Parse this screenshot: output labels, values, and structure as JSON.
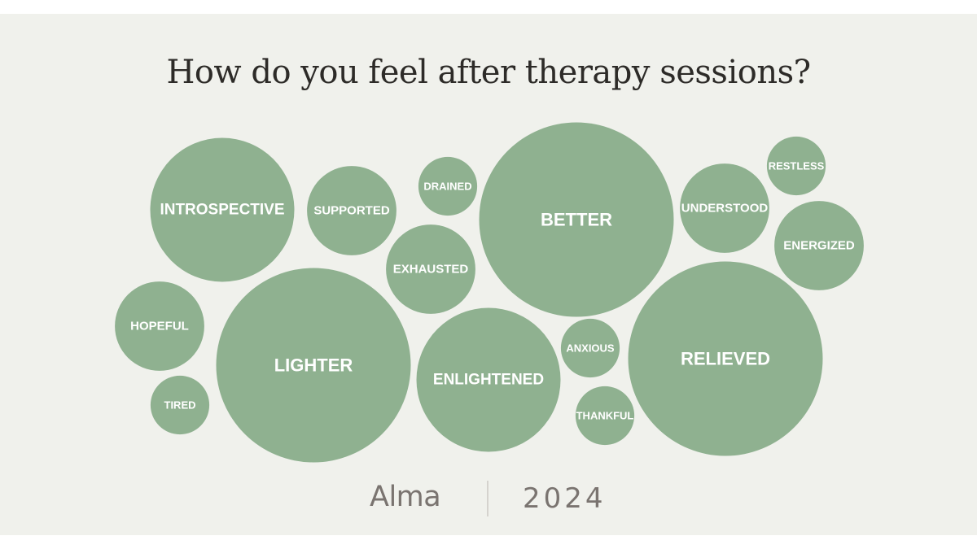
{
  "title": "How do you feel after therapy sessions?",
  "footer": {
    "brand": "Alma",
    "year": "2024"
  },
  "colors": {
    "background": "#f0f1ec",
    "bubble": "#8fb190",
    "bubble_text": "#ffffff",
    "title": "#2d2b28",
    "footer_text": "#7a7470"
  },
  "chart_data": {
    "type": "bubble",
    "title": "How do you feel after therapy sessions?",
    "labels": [
      "INTROSPECTIVE",
      "SUPPORTED",
      "DRAINED",
      "BETTER",
      "UNDERSTOOD",
      "RESTLESS",
      "ENERGIZED",
      "EXHAUSTED",
      "HOPEFUL",
      "LIGHTER",
      "ENLIGHTENED",
      "ANXIOUS",
      "RELIEVED",
      "TIRED",
      "THANKFUL"
    ],
    "values": [
      7.8,
      3.0,
      1.3,
      14.2,
      3.0,
      1.3,
      3.0,
      3.0,
      3.0,
      14.2,
      7.8,
      1.3,
      14.2,
      1.3,
      1.3
    ]
  }
}
